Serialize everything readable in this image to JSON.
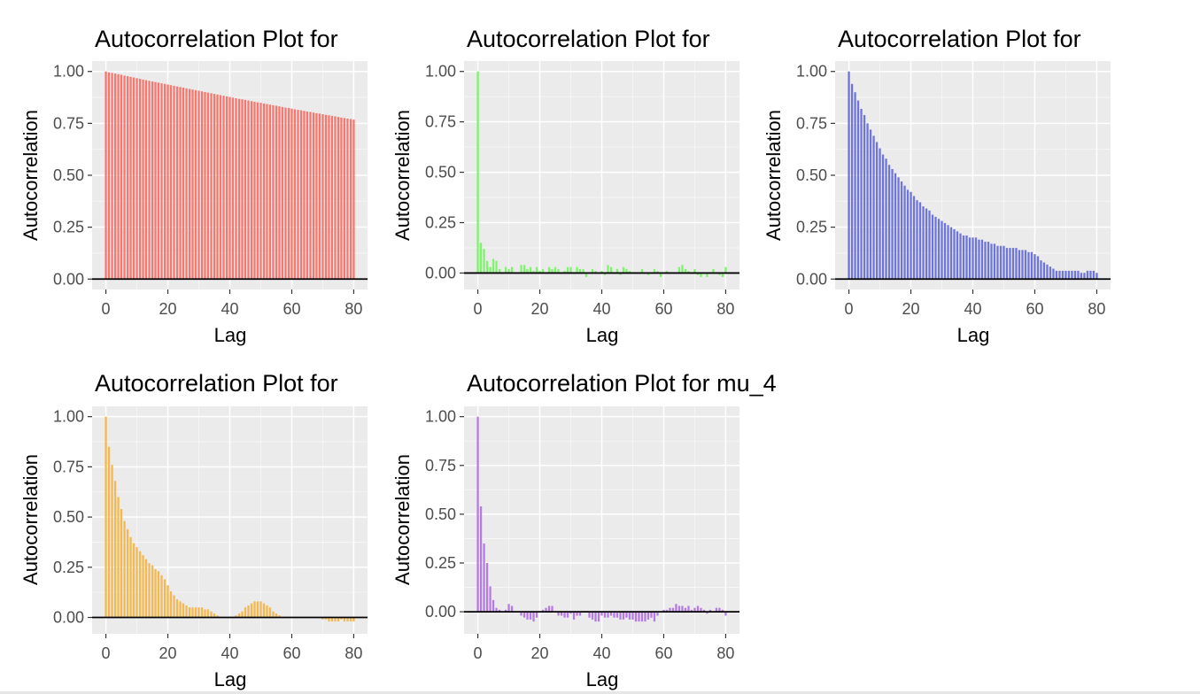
{
  "chart_data": [
    {
      "type": "bar",
      "title": "Autocorrelation Plot for",
      "xlabel": "Lag",
      "ylabel": "Autocorrelation",
      "color": "#F8766D",
      "xlim": [
        0,
        80
      ],
      "ylim": [
        0,
        1
      ],
      "x_ticks": [
        "0",
        "20",
        "40",
        "60",
        "80"
      ],
      "y_ticks": [
        "0.00",
        "0.25",
        "0.50",
        "0.75",
        "1.00"
      ],
      "y_tick_values": [
        0,
        0.25,
        0.5,
        0.75,
        1.0
      ],
      "x": [
        0,
        1,
        2,
        3,
        4,
        5,
        6,
        7,
        8,
        9,
        10,
        11,
        12,
        13,
        14,
        15,
        16,
        17,
        18,
        19,
        20,
        21,
        22,
        23,
        24,
        25,
        26,
        27,
        28,
        29,
        30,
        31,
        32,
        33,
        34,
        35,
        36,
        37,
        38,
        39,
        40,
        41,
        42,
        43,
        44,
        45,
        46,
        47,
        48,
        49,
        50,
        51,
        52,
        53,
        54,
        55,
        56,
        57,
        58,
        59,
        60,
        61,
        62,
        63,
        64,
        65,
        66,
        67,
        68,
        69,
        70,
        71,
        72,
        73,
        74,
        75,
        76,
        77,
        78,
        79,
        80
      ],
      "values": [
        1.0,
        0.996,
        0.993,
        0.99,
        0.987,
        0.984,
        0.98,
        0.977,
        0.974,
        0.971,
        0.968,
        0.965,
        0.961,
        0.958,
        0.955,
        0.952,
        0.949,
        0.946,
        0.943,
        0.94,
        0.937,
        0.934,
        0.931,
        0.928,
        0.925,
        0.922,
        0.919,
        0.916,
        0.913,
        0.91,
        0.907,
        0.904,
        0.901,
        0.898,
        0.895,
        0.892,
        0.889,
        0.886,
        0.883,
        0.88,
        0.877,
        0.874,
        0.871,
        0.868,
        0.866,
        0.863,
        0.86,
        0.857,
        0.854,
        0.851,
        0.849,
        0.846,
        0.843,
        0.84,
        0.837,
        0.835,
        0.832,
        0.829,
        0.826,
        0.824,
        0.821,
        0.818,
        0.815,
        0.813,
        0.81,
        0.807,
        0.805,
        0.802,
        0.799,
        0.797,
        0.794,
        0.791,
        0.789,
        0.786,
        0.784,
        0.781,
        0.778,
        0.776,
        0.773,
        0.771,
        0.768
      ]
    },
    {
      "type": "bar",
      "title": "Autocorrelation Plot for",
      "xlabel": "Lag",
      "ylabel": "Autocorrelation",
      "color": "#7CF56A",
      "xlim": [
        0,
        80
      ],
      "ylim": [
        -0.03,
        1
      ],
      "x_ticks": [
        "0",
        "20",
        "40",
        "60",
        "80"
      ],
      "y_ticks": [
        "0.00",
        "0.25",
        "0.50",
        "0.75",
        "1.00"
      ],
      "y_tick_values": [
        0,
        0.25,
        0.5,
        0.75,
        1.0
      ],
      "x": [
        0,
        1,
        2,
        3,
        4,
        5,
        6,
        7,
        8,
        9,
        10,
        11,
        12,
        13,
        14,
        15,
        16,
        17,
        18,
        19,
        20,
        21,
        22,
        23,
        24,
        25,
        26,
        27,
        28,
        29,
        30,
        31,
        32,
        33,
        34,
        35,
        36,
        37,
        38,
        39,
        40,
        41,
        42,
        43,
        44,
        45,
        46,
        47,
        48,
        49,
        50,
        51,
        52,
        53,
        54,
        55,
        56,
        57,
        58,
        59,
        60,
        61,
        62,
        63,
        64,
        65,
        66,
        67,
        68,
        69,
        70,
        71,
        72,
        73,
        74,
        75,
        76,
        77,
        78,
        79,
        80
      ],
      "values": [
        1.0,
        0.15,
        0.12,
        0.06,
        0.03,
        0.07,
        0.06,
        0.02,
        0.0,
        0.03,
        0.02,
        0.03,
        0.0,
        0.0,
        0.04,
        0.04,
        0.02,
        0.03,
        0.01,
        0.03,
        0.01,
        0.02,
        0.0,
        0.03,
        0.02,
        0.03,
        0.02,
        0.0,
        0.01,
        0.03,
        0.03,
        0.0,
        0.03,
        0.02,
        0.02,
        -0.02,
        0.0,
        0.02,
        0.01,
        0.0,
        0.01,
        -0.01,
        0.04,
        0.03,
        0.0,
        0.02,
        -0.01,
        0.03,
        0.02,
        0.01,
        0.0,
        0.0,
        0.0,
        0.02,
        0.0,
        -0.01,
        0.0,
        0.02,
        0.01,
        -0.02,
        0.0,
        0.01,
        0.0,
        0.0,
        0.0,
        0.03,
        0.04,
        0.02,
        0.01,
        0.0,
        0.02,
        -0.01,
        -0.02,
        0.0,
        -0.02,
        0.0,
        0.02,
        0.0,
        -0.01,
        -0.02,
        0.03
      ]
    },
    {
      "type": "bar",
      "title": "Autocorrelation Plot for",
      "xlabel": "Lag",
      "ylabel": "Autocorrelation",
      "color": "#6D74DB",
      "xlim": [
        0,
        80
      ],
      "ylim": [
        0,
        1
      ],
      "x_ticks": [
        "0",
        "20",
        "40",
        "60",
        "80"
      ],
      "y_ticks": [
        "0.00",
        "0.25",
        "0.50",
        "0.75",
        "1.00"
      ],
      "y_tick_values": [
        0,
        0.25,
        0.5,
        0.75,
        1.0
      ],
      "x": [
        0,
        1,
        2,
        3,
        4,
        5,
        6,
        7,
        8,
        9,
        10,
        11,
        12,
        13,
        14,
        15,
        16,
        17,
        18,
        19,
        20,
        21,
        22,
        23,
        24,
        25,
        26,
        27,
        28,
        29,
        30,
        31,
        32,
        33,
        34,
        35,
        36,
        37,
        38,
        39,
        40,
        41,
        42,
        43,
        44,
        45,
        46,
        47,
        48,
        49,
        50,
        51,
        52,
        53,
        54,
        55,
        56,
        57,
        58,
        59,
        60,
        61,
        62,
        63,
        64,
        65,
        66,
        67,
        68,
        69,
        70,
        71,
        72,
        73,
        74,
        75,
        76,
        77,
        78,
        79,
        80
      ],
      "values": [
        1.0,
        0.94,
        0.9,
        0.86,
        0.82,
        0.79,
        0.75,
        0.72,
        0.69,
        0.66,
        0.63,
        0.6,
        0.58,
        0.55,
        0.53,
        0.51,
        0.49,
        0.47,
        0.45,
        0.43,
        0.42,
        0.4,
        0.38,
        0.37,
        0.35,
        0.34,
        0.33,
        0.31,
        0.3,
        0.29,
        0.28,
        0.27,
        0.26,
        0.25,
        0.24,
        0.23,
        0.22,
        0.21,
        0.21,
        0.2,
        0.2,
        0.2,
        0.19,
        0.19,
        0.18,
        0.18,
        0.17,
        0.17,
        0.16,
        0.16,
        0.16,
        0.15,
        0.15,
        0.15,
        0.15,
        0.14,
        0.14,
        0.14,
        0.13,
        0.13,
        0.12,
        0.11,
        0.09,
        0.08,
        0.07,
        0.06,
        0.05,
        0.04,
        0.04,
        0.04,
        0.04,
        0.04,
        0.04,
        0.04,
        0.04,
        0.03,
        0.03,
        0.04,
        0.04,
        0.04,
        0.03
      ]
    },
    {
      "type": "bar",
      "title": "Autocorrelation Plot for",
      "xlabel": "Lag",
      "ylabel": "Autocorrelation",
      "color": "#F5B74F",
      "xlim": [
        0,
        80
      ],
      "ylim": [
        -0.03,
        1
      ],
      "x_ticks": [
        "0",
        "20",
        "40",
        "60",
        "80"
      ],
      "y_ticks": [
        "0.00",
        "0.25",
        "0.50",
        "0.75",
        "1.00"
      ],
      "y_tick_values": [
        0,
        0.25,
        0.5,
        0.75,
        1.0
      ],
      "x": [
        0,
        1,
        2,
        3,
        4,
        5,
        6,
        7,
        8,
        9,
        10,
        11,
        12,
        13,
        14,
        15,
        16,
        17,
        18,
        19,
        20,
        21,
        22,
        23,
        24,
        25,
        26,
        27,
        28,
        29,
        30,
        31,
        32,
        33,
        34,
        35,
        36,
        37,
        38,
        39,
        40,
        41,
        42,
        43,
        44,
        45,
        46,
        47,
        48,
        49,
        50,
        51,
        52,
        53,
        54,
        55,
        56,
        57,
        58,
        59,
        60,
        61,
        62,
        63,
        64,
        65,
        66,
        67,
        68,
        69,
        70,
        71,
        72,
        73,
        74,
        75,
        76,
        77,
        78,
        79,
        80
      ],
      "values": [
        1.0,
        0.85,
        0.76,
        0.68,
        0.6,
        0.54,
        0.48,
        0.44,
        0.4,
        0.37,
        0.35,
        0.33,
        0.31,
        0.29,
        0.27,
        0.26,
        0.24,
        0.23,
        0.21,
        0.19,
        0.16,
        0.13,
        0.11,
        0.09,
        0.08,
        0.07,
        0.06,
        0.05,
        0.05,
        0.05,
        0.05,
        0.05,
        0.04,
        0.04,
        0.03,
        0.02,
        0.01,
        0.0,
        0.0,
        0.0,
        0.0,
        0.0,
        0.01,
        0.02,
        0.03,
        0.05,
        0.06,
        0.07,
        0.08,
        0.08,
        0.08,
        0.07,
        0.06,
        0.05,
        0.03,
        0.02,
        0.01,
        0.0,
        0.0,
        0.0,
        0.0,
        0.0,
        0.0,
        0.0,
        0.0,
        0.0,
        0.0,
        0.0,
        0.0,
        0.0,
        -0.01,
        -0.01,
        -0.02,
        -0.02,
        -0.02,
        -0.02,
        -0.01,
        -0.02,
        -0.02,
        -0.02,
        -0.02
      ]
    },
    {
      "type": "bar",
      "title": "Autocorrelation Plot for mu_4",
      "xlabel": "Lag",
      "ylabel": "Autocorrelation",
      "color": "#B57BE3",
      "xlim": [
        0,
        80
      ],
      "ylim": [
        -0.06,
        1
      ],
      "x_ticks": [
        "0",
        "20",
        "40",
        "60",
        "80"
      ],
      "y_ticks": [
        "0.00",
        "0.25",
        "0.50",
        "0.75",
        "1.00"
      ],
      "y_tick_values": [
        0,
        0.25,
        0.5,
        0.75,
        1.0
      ],
      "x": [
        0,
        1,
        2,
        3,
        4,
        5,
        6,
        7,
        8,
        9,
        10,
        11,
        12,
        13,
        14,
        15,
        16,
        17,
        18,
        19,
        20,
        21,
        22,
        23,
        24,
        25,
        26,
        27,
        28,
        29,
        30,
        31,
        32,
        33,
        34,
        35,
        36,
        37,
        38,
        39,
        40,
        41,
        42,
        43,
        44,
        45,
        46,
        47,
        48,
        49,
        50,
        51,
        52,
        53,
        54,
        55,
        56,
        57,
        58,
        59,
        60,
        61,
        62,
        63,
        64,
        65,
        66,
        67,
        68,
        69,
        70,
        71,
        72,
        73,
        74,
        75,
        76,
        77,
        78,
        79,
        80
      ],
      "values": [
        1.0,
        0.54,
        0.35,
        0.25,
        0.13,
        0.06,
        0.02,
        0.01,
        0.0,
        0.01,
        0.04,
        0.03,
        0.0,
        0.0,
        -0.02,
        -0.03,
        -0.04,
        -0.04,
        -0.05,
        -0.03,
        0.0,
        0.01,
        0.02,
        0.03,
        0.03,
        0.0,
        -0.02,
        -0.02,
        -0.03,
        -0.03,
        -0.01,
        -0.04,
        -0.02,
        -0.02,
        0.0,
        0.0,
        -0.03,
        -0.04,
        -0.05,
        -0.05,
        -0.02,
        -0.03,
        -0.03,
        -0.02,
        -0.03,
        -0.03,
        -0.04,
        -0.04,
        -0.03,
        -0.04,
        -0.04,
        -0.05,
        -0.05,
        -0.05,
        -0.05,
        -0.04,
        -0.03,
        -0.05,
        -0.02,
        0.0,
        0.01,
        0.01,
        0.02,
        0.02,
        0.04,
        0.03,
        0.03,
        0.02,
        0.03,
        0.01,
        0.02,
        0.03,
        0.02,
        0.01,
        -0.01,
        0.01,
        0.0,
        0.02,
        0.02,
        0.01,
        -0.02
      ]
    }
  ]
}
